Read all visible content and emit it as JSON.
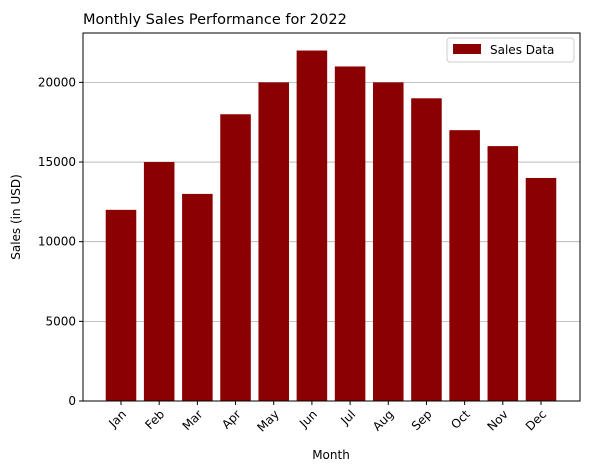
{
  "chart_data": {
    "type": "bar",
    "title": "Monthly Sales Performance for 2022",
    "xlabel": "Month",
    "ylabel": "Sales (in USD)",
    "categories": [
      "Jan",
      "Feb",
      "Mar",
      "Apr",
      "May",
      "Jun",
      "Jul",
      "Aug",
      "Sep",
      "Oct",
      "Nov",
      "Dec"
    ],
    "series": [
      {
        "name": "Sales Data",
        "values": [
          12000,
          15000,
          13000,
          18000,
          20000,
          22000,
          21000,
          20000,
          19000,
          17000,
          16000,
          14000
        ]
      }
    ],
    "ylim": [
      0,
      23100
    ],
    "yticks": [
      0,
      5000,
      10000,
      15000,
      20000
    ],
    "ytick_labels": [
      "0",
      "5000",
      "10000",
      "15000",
      "20000"
    ],
    "grid": "y",
    "legend_position": "top-right",
    "bar_color": "#8b0000",
    "xtick_rotation_deg": 45
  }
}
